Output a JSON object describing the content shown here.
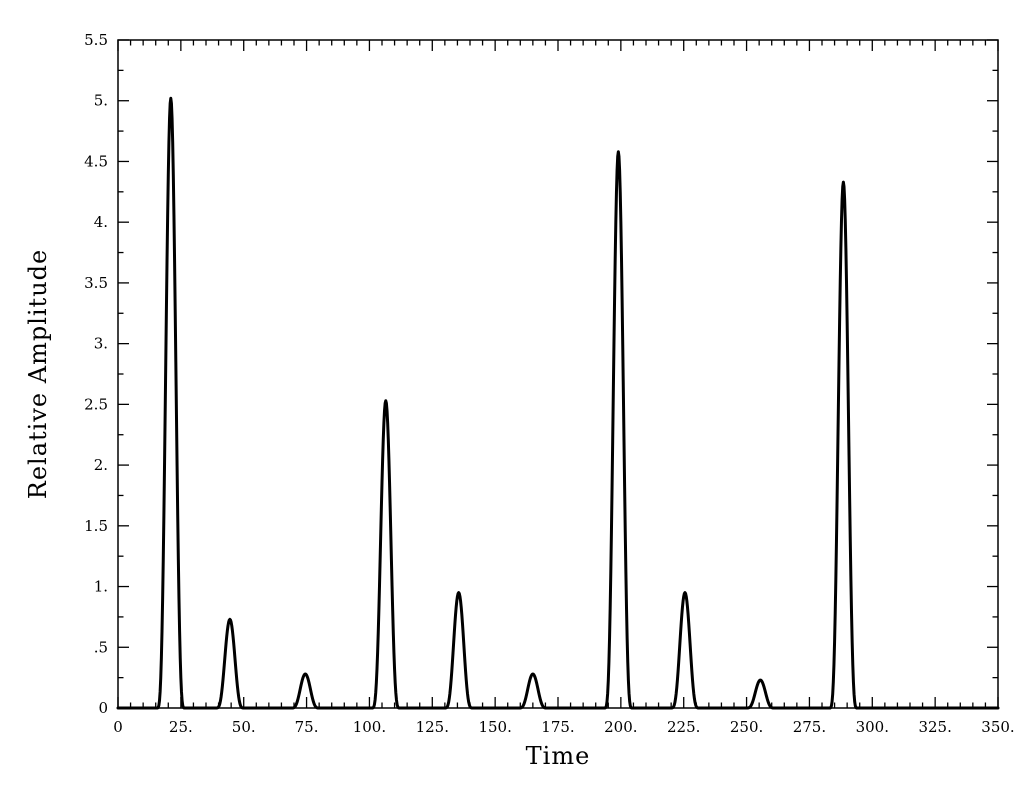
{
  "chart_data": {
    "type": "line",
    "title": "",
    "xlabel": "Time",
    "ylabel": "Relative Amplitude",
    "xlim": [
      0,
      350
    ],
    "ylim": [
      0,
      5.5
    ],
    "x_ticks": [
      {
        "value": 0,
        "label": "0"
      },
      {
        "value": 25,
        "label": "25."
      },
      {
        "value": 50,
        "label": "50."
      },
      {
        "value": 75,
        "label": "75."
      },
      {
        "value": 100,
        "label": "100."
      },
      {
        "value": 125,
        "label": "125."
      },
      {
        "value": 150,
        "label": "150."
      },
      {
        "value": 175,
        "label": "175."
      },
      {
        "value": 200,
        "label": "200."
      },
      {
        "value": 225,
        "label": "225."
      },
      {
        "value": 250,
        "label": "250."
      },
      {
        "value": 275,
        "label": "275."
      },
      {
        "value": 300,
        "label": "300."
      },
      {
        "value": 325,
        "label": "325."
      },
      {
        "value": 350,
        "label": "350."
      }
    ],
    "y_ticks": [
      {
        "value": 0,
        "label": "0"
      },
      {
        "value": 0.5,
        "label": ".5"
      },
      {
        "value": 1,
        "label": "1."
      },
      {
        "value": 1.5,
        "label": "1.5"
      },
      {
        "value": 2,
        "label": "2."
      },
      {
        "value": 2.5,
        "label": "2.5"
      },
      {
        "value": 3,
        "label": "3."
      },
      {
        "value": 3.5,
        "label": "3.5"
      },
      {
        "value": 4,
        "label": "4."
      },
      {
        "value": 4.5,
        "label": "4.5"
      },
      {
        "value": 5,
        "label": "5."
      },
      {
        "value": 5.5,
        "label": "5.5"
      }
    ],
    "grid": false,
    "legend": "none",
    "line_color": "#000000",
    "peaks": [
      {
        "time": 21,
        "amplitude": 5.02
      },
      {
        "time": 44.5,
        "amplitude": 0.73
      },
      {
        "time": 74.5,
        "amplitude": 0.28
      },
      {
        "time": 106.5,
        "amplitude": 2.53
      },
      {
        "time": 135.5,
        "amplitude": 0.95
      },
      {
        "time": 165,
        "amplitude": 0.28
      },
      {
        "time": 199,
        "amplitude": 4.58
      },
      {
        "time": 225.5,
        "amplitude": 0.95
      },
      {
        "time": 255.5,
        "amplitude": 0.23
      },
      {
        "time": 288.5,
        "amplitude": 4.33
      }
    ]
  }
}
